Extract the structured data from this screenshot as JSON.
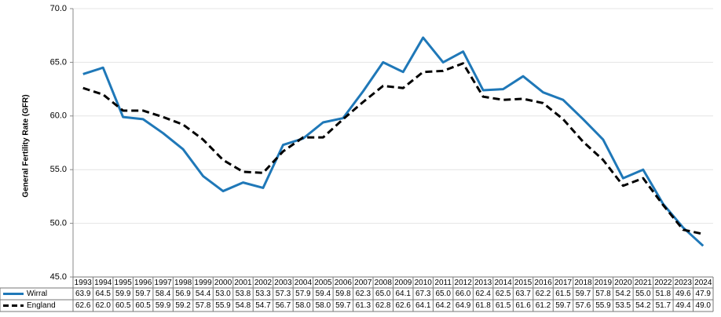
{
  "chart_data": {
    "type": "line",
    "y_axis_label": "General Fertility Rate (GFR)",
    "categories": [
      "1993",
      "1994",
      "1995",
      "1996",
      "1997",
      "1998",
      "1999",
      "2000",
      "2001",
      "2002",
      "2003",
      "2004",
      "2005",
      "2006",
      "2007",
      "2008",
      "2009",
      "2010",
      "2011",
      "2012",
      "2013",
      "2014",
      "2015",
      "2016",
      "2017",
      "2018",
      "2019",
      "2020",
      "2021",
      "2022",
      "2023",
      "2024"
    ],
    "series": [
      {
        "name": "Wirral",
        "color": "#1f78b8",
        "dashed": false,
        "values": [
          63.9,
          64.5,
          59.9,
          59.7,
          58.4,
          56.9,
          54.4,
          53.0,
          53.8,
          53.3,
          57.3,
          57.9,
          59.4,
          59.8,
          62.3,
          65.0,
          64.1,
          67.3,
          65.0,
          66.0,
          62.4,
          62.5,
          63.7,
          62.2,
          61.5,
          59.7,
          57.8,
          54.2,
          55.0,
          51.8,
          49.6,
          47.9
        ],
        "value_labels": [
          "63.9",
          "64.5",
          "59.9",
          "59.7",
          "58.4",
          "56.9",
          "54.4",
          "53.0",
          "53.8",
          "53.3",
          "57.3",
          "57.9",
          "59.4",
          "59.8",
          "62.3",
          "65.0",
          "64.1",
          "67.3",
          "65.0",
          "66.0",
          "62.4",
          "62.5",
          "63.7",
          "62.2",
          "61.5",
          "59.7",
          "57.8",
          "54.2",
          "55.0",
          "51.8",
          "49.6",
          "47.9"
        ]
      },
      {
        "name": "England",
        "color": "#000000",
        "dashed": true,
        "values": [
          62.6,
          62.0,
          60.5,
          60.5,
          59.9,
          59.2,
          57.8,
          55.9,
          54.8,
          54.7,
          56.7,
          58.0,
          58.0,
          59.7,
          61.3,
          62.8,
          62.6,
          64.1,
          64.2,
          64.9,
          61.8,
          61.5,
          61.6,
          61.2,
          59.7,
          57.6,
          55.9,
          53.5,
          54.2,
          51.7,
          49.4,
          49.0
        ],
        "value_labels": [
          "62.6",
          "62.0",
          "60.5",
          "60.5",
          "59.9",
          "59.2",
          "57.8",
          "55.9",
          "54.8",
          "54.7",
          "56.7",
          "58.0",
          "58.0",
          "59.7",
          "61.3",
          "62.8",
          "62.6",
          "64.1",
          "64.2",
          "64.9",
          "61.8",
          "61.5",
          "61.6",
          "61.2",
          "59.7",
          "57.6",
          "55.9",
          "53.5",
          "54.2",
          "51.7",
          "49.4",
          "49.0"
        ]
      }
    ],
    "ylim": [
      45,
      70
    ],
    "yticks": [
      {
        "value": 45,
        "label": "45.0"
      },
      {
        "value": 50,
        "label": "50.0"
      },
      {
        "value": 55,
        "label": "55.0"
      },
      {
        "value": 60,
        "label": "60.0"
      },
      {
        "value": 65,
        "label": "65.0"
      },
      {
        "value": 70,
        "label": "70.0"
      }
    ],
    "grid": true
  }
}
